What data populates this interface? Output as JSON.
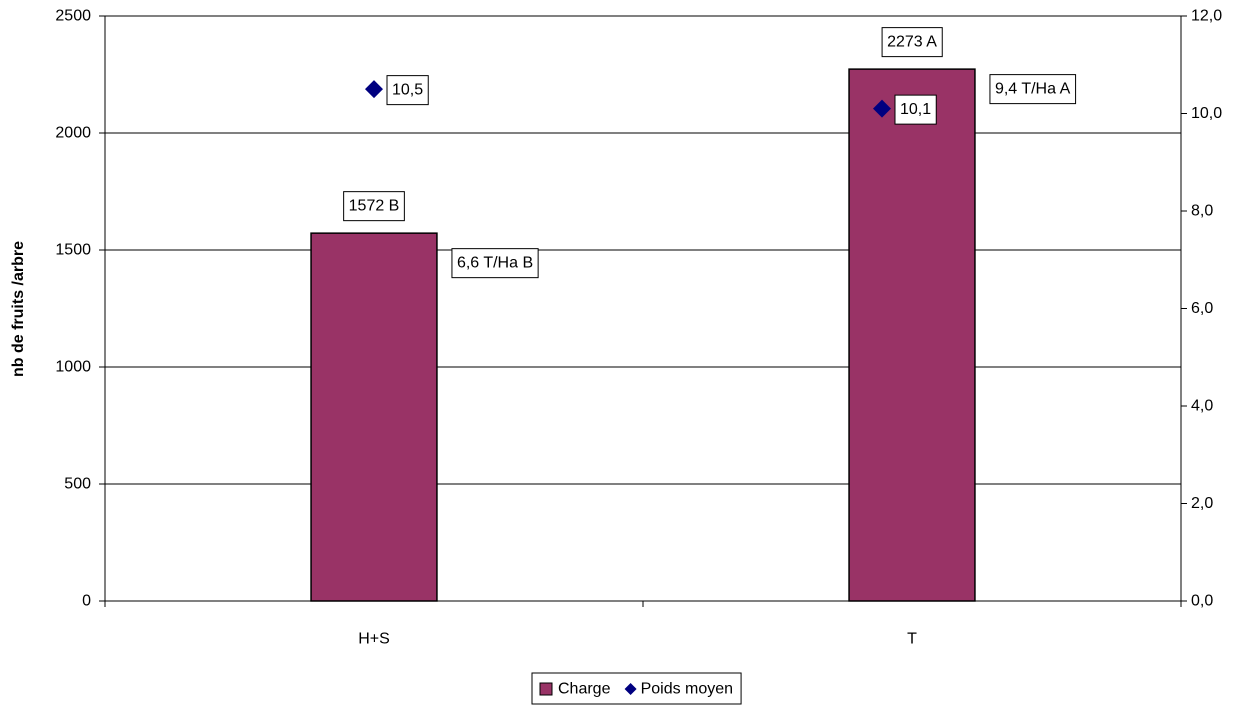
{
  "chart_data": {
    "type": "bar",
    "title": "",
    "xlabel": "",
    "ylabel": "nb de fruits /arbre",
    "y2label": "",
    "ylim": [
      0,
      2500
    ],
    "y2lim": [
      0,
      12
    ],
    "yticks": [
      "0",
      "500",
      "1000",
      "1500",
      "2000",
      "2500"
    ],
    "y2ticks": [
      "0,0",
      "2,0",
      "4,0",
      "6,0",
      "8,0",
      "10,0",
      "12,0"
    ],
    "categories": [
      "H+S",
      "T"
    ],
    "grid": true,
    "legend_position": "bottom",
    "series": [
      {
        "name": "Charge",
        "kind": "bar",
        "axis": "left",
        "color": "#993366",
        "values": [
          1572,
          2273
        ],
        "labels": [
          "1572 B",
          "2273 A"
        ]
      },
      {
        "name": "Poids moyen",
        "kind": "scatter",
        "axis": "right",
        "marker": "diamond",
        "color": "#000080",
        "values": [
          10.5,
          10.1
        ],
        "labels": [
          "10,5",
          "10,1"
        ]
      }
    ],
    "annotations": [
      "6,6 T/Ha B",
      "9,4 T/Ha A"
    ]
  }
}
